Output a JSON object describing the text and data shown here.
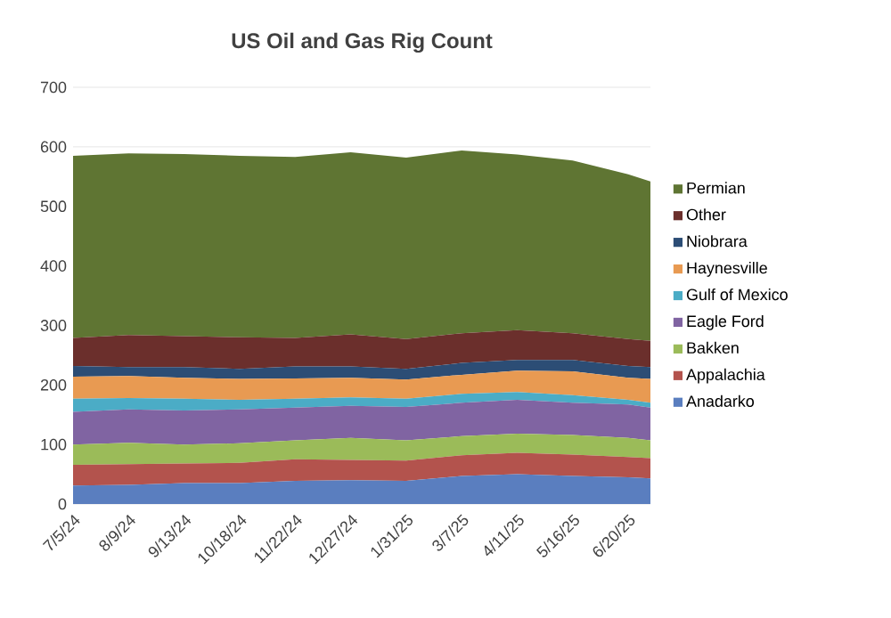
{
  "chart_data": {
    "type": "area",
    "title": "US Oil and Gas Rig Count",
    "stacked": true,
    "legend": "right",
    "grid": "y",
    "x": [
      "2024-07-05",
      "2024-08-09",
      "2024-09-13",
      "2024-10-18",
      "2024-11-22",
      "2024-12-27",
      "2025-01-31",
      "2025-03-07",
      "2025-04-11",
      "2025-05-16",
      "2025-06-20",
      "2025-07-04"
    ],
    "xlim": [
      "2024-07-05",
      "2025-07-04"
    ],
    "xticks": [
      {
        "value": "2024-07-05",
        "label": "7/5/24"
      },
      {
        "value": "2024-08-09",
        "label": "8/9/24"
      },
      {
        "value": "2024-09-13",
        "label": "9/13/24"
      },
      {
        "value": "2024-10-18",
        "label": "10/18/24"
      },
      {
        "value": "2024-11-22",
        "label": "11/22/24"
      },
      {
        "value": "2024-12-27",
        "label": "12/27/24"
      },
      {
        "value": "2025-01-31",
        "label": "1/31/25"
      },
      {
        "value": "2025-03-07",
        "label": "3/7/25"
      },
      {
        "value": "2025-04-11",
        "label": "4/11/25"
      },
      {
        "value": "2025-05-16",
        "label": "5/16/25"
      },
      {
        "value": "2025-06-20",
        "label": "6/20/25"
      }
    ],
    "ylim": [
      0,
      700
    ],
    "yticks": [
      0,
      100,
      200,
      300,
      400,
      500,
      600,
      700
    ],
    "series": [
      {
        "name": "Anadarko",
        "color": "#5a7ebf",
        "values": [
          31,
          32,
          35,
          35,
          39,
          40,
          39,
          47,
          50,
          47,
          45,
          43
        ]
      },
      {
        "name": "Appalachia",
        "color": "#b3534d",
        "values": [
          35,
          35,
          33,
          34,
          36,
          34,
          34,
          35,
          36,
          36,
          34,
          34
        ]
      },
      {
        "name": "Bakken",
        "color": "#9bbb59",
        "values": [
          34,
          36,
          32,
          33,
          32,
          37,
          34,
          32,
          32,
          33,
          32,
          30
        ]
      },
      {
        "name": "Eagle Ford",
        "color": "#8064a2",
        "values": [
          55,
          56,
          57,
          57,
          55,
          54,
          56,
          56,
          57,
          54,
          56,
          55
        ]
      },
      {
        "name": "Gulf of Mexico",
        "color": "#4bacc6",
        "values": [
          22,
          19,
          20,
          16,
          15,
          14,
          14,
          15,
          13,
          13,
          8,
          8
        ]
      },
      {
        "name": "Haynesville",
        "color": "#e89a52",
        "values": [
          37,
          37,
          35,
          35,
          34,
          33,
          32,
          32,
          36,
          40,
          37,
          40
        ]
      },
      {
        "name": "Niobrara",
        "color": "#2c4d75",
        "values": [
          18,
          15,
          18,
          17,
          20,
          19,
          18,
          20,
          18,
          19,
          20,
          20
        ]
      },
      {
        "name": "Other",
        "color": "#6b2f2c",
        "values": [
          47,
          54,
          52,
          53,
          48,
          54,
          50,
          50,
          50,
          45,
          45,
          44
        ]
      },
      {
        "name": "Permian",
        "color": "#5f7533",
        "values": [
          306,
          305,
          306,
          305,
          304,
          306,
          305,
          307,
          295,
          290,
          277,
          268
        ]
      }
    ]
  }
}
